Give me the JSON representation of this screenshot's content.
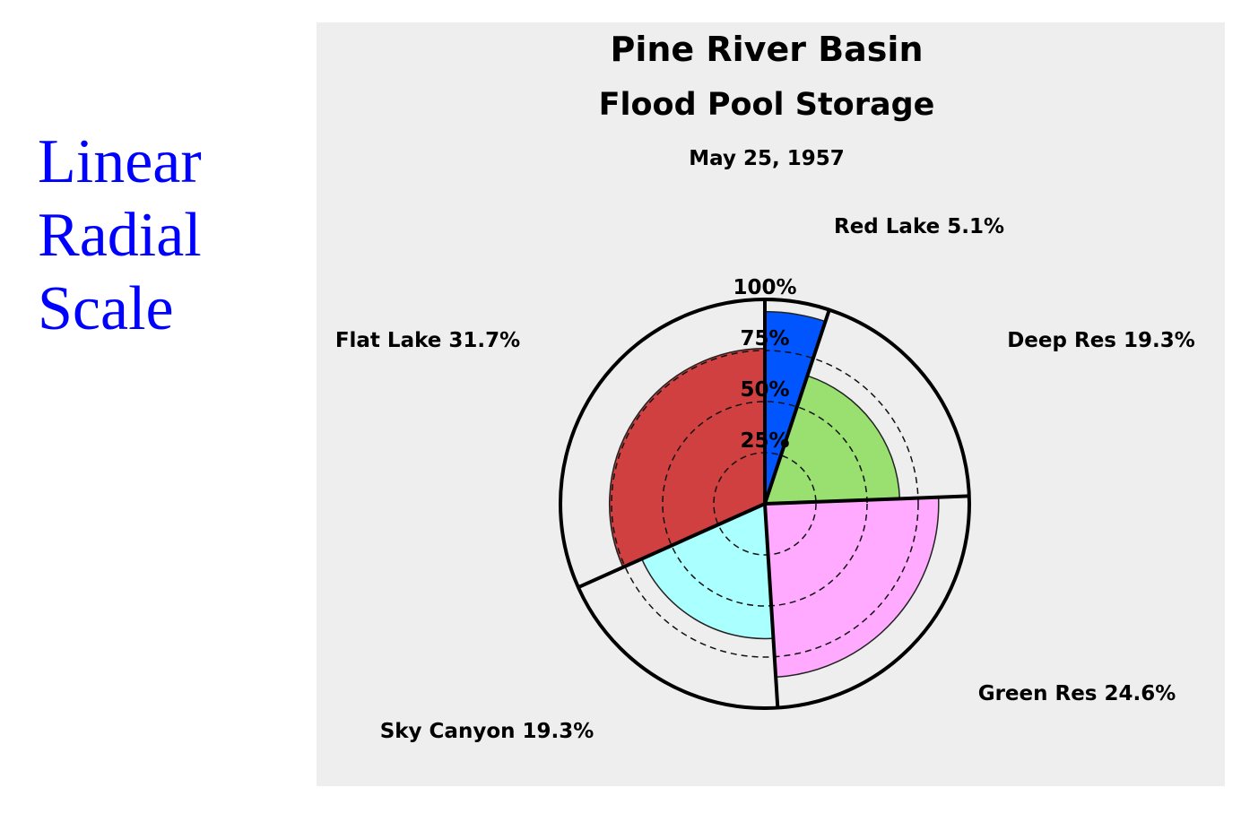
{
  "side_title": [
    "Linear",
    "Radial",
    "Scale"
  ],
  "colors": {
    "side_title": "#0000ff",
    "panel_bg": "#eeeeee"
  },
  "chart_data": {
    "type": "polar-area",
    "title": "Pine River Basin",
    "subtitle": "Flood Pool Storage",
    "date": "May 25, 1957",
    "radial_scale": "linear",
    "radial_range": [
      0,
      100
    ],
    "radial_ticks": [
      "25%",
      "50%",
      "75%",
      "100%"
    ],
    "radial_tick_values": [
      25,
      50,
      75,
      100
    ],
    "start_angle": "top, clockwise",
    "slices": [
      {
        "name": "Red Lake",
        "share_label": "5.1%",
        "share": 5.1,
        "radius_value": 94,
        "color": "#0055ff"
      },
      {
        "name": "Deep Res",
        "share_label": "19.3%",
        "share": 19.3,
        "radius_value": 66,
        "color": "#99e070"
      },
      {
        "name": "Green Res",
        "share_label": "24.6%",
        "share": 24.6,
        "radius_value": 85,
        "color": "#ffaaff"
      },
      {
        "name": "Sky Canyon",
        "share_label": "19.3%",
        "share": 19.3,
        "radius_value": 66,
        "color": "#aaffff"
      },
      {
        "name": "Flat Lake",
        "share_label": "31.7%",
        "share": 31.7,
        "radius_value": 76,
        "color": "#d04040"
      }
    ]
  }
}
